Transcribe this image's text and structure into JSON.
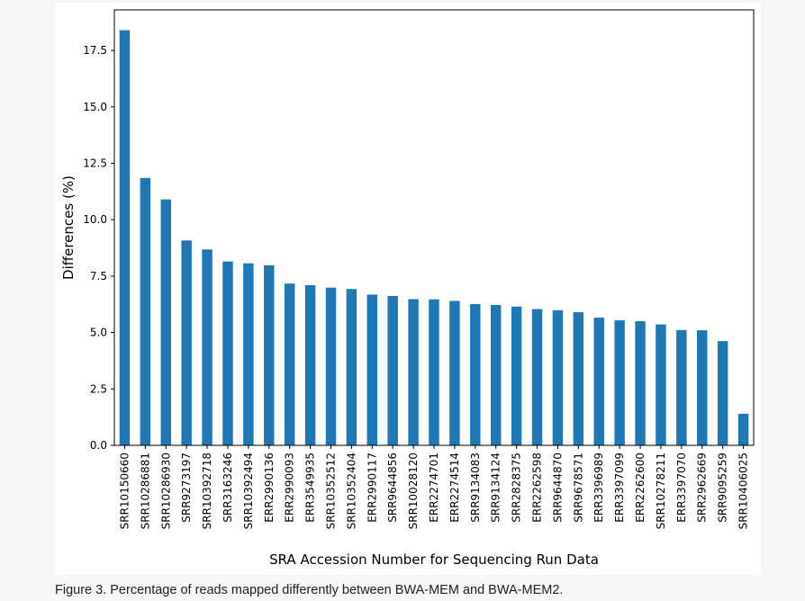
{
  "chart_data": {
    "type": "bar",
    "categories": [
      "SRR10150660",
      "SRR10286881",
      "SRR10286930",
      "SRR9273197",
      "SRR10392718",
      "SRR3163246",
      "SRR10392494",
      "ERR2990136",
      "ERR2990093",
      "ERR3549935",
      "SRR10352512",
      "SRR10352404",
      "ERR2990117",
      "SRR9644856",
      "SRR10028120",
      "ERR2274701",
      "ERR2274514",
      "SRR9134083",
      "SRR9134124",
      "SRR2828375",
      "ERR2262598",
      "SRR9644870",
      "SRR9678571",
      "ERR3396989",
      "ERR3397099",
      "ERR2262600",
      "SRR10278211",
      "ERR3397070",
      "SRR2962669",
      "SRR9095259",
      "SRR10406025"
    ],
    "values": [
      18.4,
      11.85,
      10.9,
      9.08,
      8.68,
      8.15,
      8.07,
      7.98,
      7.17,
      7.1,
      6.99,
      6.93,
      6.68,
      6.62,
      6.48,
      6.47,
      6.4,
      6.26,
      6.22,
      6.15,
      6.04,
      5.99,
      5.9,
      5.66,
      5.54,
      5.5,
      5.36,
      5.11,
      5.1,
      4.62,
      1.4
    ],
    "xlabel": "SRA Accession Number for Sequencing Run Data",
    "ylabel": "Differences (%)",
    "ylim": [
      0,
      19.3
    ],
    "yticks": [
      "0.0",
      "2.5",
      "5.0",
      "7.5",
      "10.0",
      "12.5",
      "15.0",
      "17.5"
    ],
    "bar_color": "#1f77b4",
    "grid": false,
    "legend": "none"
  },
  "caption": "Figure 3. Percentage of reads mapped differently between BWA-MEM and BWA-MEM2."
}
